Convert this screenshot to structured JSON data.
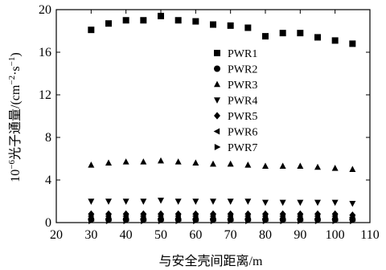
{
  "chart_data": {
    "type": "scatter",
    "xlabel": "与安全壳间距离/m",
    "ylabel_prefix": "10",
    "ylabel_exp": "−6",
    "ylabel_main": "光子通量/(cm",
    "ylabel_exp2": "−2",
    "ylabel_mid": "·s",
    "ylabel_exp3": "−1",
    "ylabel_end": ")",
    "xlim": [
      20,
      110
    ],
    "ylim": [
      0,
      20
    ],
    "xticks": [
      20,
      30,
      40,
      50,
      60,
      70,
      80,
      90,
      100,
      110
    ],
    "yticks": [
      0,
      4,
      8,
      12,
      16,
      20
    ],
    "grid": false,
    "legend_position": "center",
    "x": [
      30,
      35,
      40,
      45,
      50,
      55,
      60,
      65,
      70,
      75,
      80,
      85,
      90,
      95,
      100,
      105
    ],
    "series": [
      {
        "name": "PWR1",
        "marker": "square",
        "values": [
          18.1,
          18.7,
          19.0,
          19.0,
          19.4,
          19.0,
          18.9,
          18.6,
          18.5,
          18.3,
          17.5,
          17.8,
          17.8,
          17.4,
          17.1,
          16.8
        ]
      },
      {
        "name": "PWR2",
        "marker": "circle",
        "values": [
          0.3,
          0.3,
          0.3,
          0.3,
          0.3,
          0.3,
          0.3,
          0.3,
          0.3,
          0.3,
          0.3,
          0.3,
          0.3,
          0.3,
          0.3,
          0.3
        ]
      },
      {
        "name": "PWR3",
        "marker": "triangle-up",
        "values": [
          5.4,
          5.6,
          5.7,
          5.7,
          5.8,
          5.7,
          5.6,
          5.5,
          5.5,
          5.4,
          5.3,
          5.3,
          5.3,
          5.2,
          5.1,
          5.0
        ]
      },
      {
        "name": "PWR4",
        "marker": "triangle-down",
        "values": [
          2.0,
          2.0,
          2.0,
          2.0,
          2.1,
          2.0,
          2.0,
          2.0,
          2.0,
          2.0,
          1.9,
          1.9,
          1.9,
          1.9,
          1.9,
          1.8
        ]
      },
      {
        "name": "PWR5",
        "marker": "diamond",
        "values": [
          0.8,
          0.8,
          0.8,
          0.8,
          0.8,
          0.8,
          0.8,
          0.8,
          0.8,
          0.8,
          0.8,
          0.8,
          0.8,
          0.8,
          0.8,
          0.7
        ]
      },
      {
        "name": "PWR6",
        "marker": "triangle-left",
        "values": [
          0.6,
          0.6,
          0.6,
          0.6,
          0.6,
          0.6,
          0.6,
          0.6,
          0.6,
          0.6,
          0.6,
          0.6,
          0.6,
          0.6,
          0.6,
          0.5
        ]
      },
      {
        "name": "PWR7",
        "marker": "triangle-right",
        "values": [
          0.15,
          0.15,
          0.15,
          0.15,
          0.15,
          0.15,
          0.15,
          0.15,
          0.15,
          0.15,
          0.15,
          0.15,
          0.15,
          0.15,
          0.15,
          0.15
        ]
      }
    ]
  }
}
